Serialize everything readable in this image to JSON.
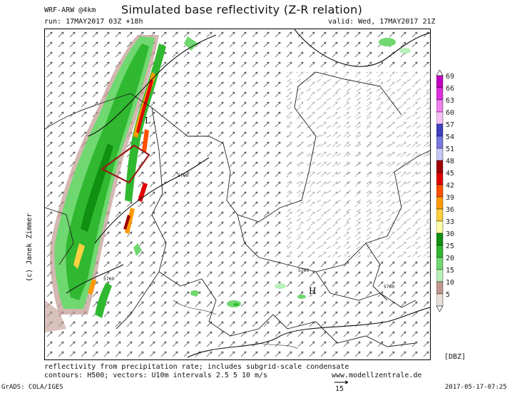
{
  "header": {
    "model": "WRF-ARW @4km",
    "title": "Simulated base reflectivity (Z-R relation)",
    "run": "run: 17MAY2017 03Z +18h",
    "valid": "valid: Wed, 17MAY2017 21Z"
  },
  "credit": "(c) Janek Zimmer",
  "map": {
    "labels": [
      "L",
      "H",
      "5760",
      "5760",
      "5760",
      "5760"
    ]
  },
  "colorbar": {
    "unit": "[DBZ]",
    "levels": [
      {
        "label": "69",
        "color": "#c000c0"
      },
      {
        "label": "66",
        "color": "#e030e0"
      },
      {
        "label": "63",
        "color": "#f080f0"
      },
      {
        "label": "60",
        "color": "#f8c0f8"
      },
      {
        "label": "57",
        "color": "#4040c0"
      },
      {
        "label": "54",
        "color": "#7878e0"
      },
      {
        "label": "51",
        "color": "#c8c8f8"
      },
      {
        "label": "48",
        "color": "#a00000"
      },
      {
        "label": "45",
        "color": "#e00000"
      },
      {
        "label": "42",
        "color": "#ff5000"
      },
      {
        "label": "39",
        "color": "#ff9a00"
      },
      {
        "label": "36",
        "color": "#ffd040"
      },
      {
        "label": "33",
        "color": "#ffffa8"
      },
      {
        "label": "30",
        "color": "#109010"
      },
      {
        "label": "25",
        "color": "#30b830"
      },
      {
        "label": "20",
        "color": "#70d870"
      },
      {
        "label": "15",
        "color": "#b8f0b8"
      },
      {
        "label": "10",
        "color": "#c09890"
      },
      {
        "label": "5",
        "color": "#eae0d8"
      }
    ]
  },
  "footer": {
    "line1": "reflectivity from precipitation rate; includes subgrid-scale condensate",
    "line2": "contours: H500; vectors: U10m intervals 2.5 5 10 m/s",
    "website": "www.modellzentrale.de",
    "ref_vector": "15",
    "grads": "GrADS: COLA/IGES",
    "timestamp": "2017-05-17-07:25"
  }
}
